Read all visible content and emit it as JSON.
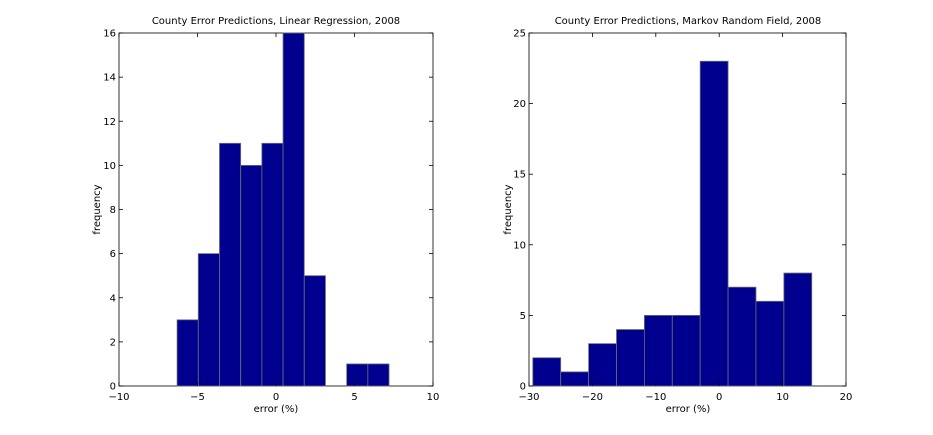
{
  "chart_data": [
    {
      "type": "bar",
      "title": "County Error Predictions, Linear Regression, 2008",
      "xlabel": "error (%)",
      "ylabel": "frequency",
      "xlim": [
        -10,
        10
      ],
      "ylim": [
        0,
        16
      ],
      "xticks": [
        "−10",
        "−5",
        "0",
        "5",
        "10"
      ],
      "yticks": [
        "0",
        "2",
        "4",
        "6",
        "8",
        "10",
        "12",
        "14",
        "16"
      ],
      "bins": [
        {
          "x0": -6.3,
          "x1": -4.95,
          "value": 3
        },
        {
          "x0": -4.95,
          "x1": -3.6,
          "value": 6
        },
        {
          "x0": -3.6,
          "x1": -2.25,
          "value": 11
        },
        {
          "x0": -2.25,
          "x1": -0.9,
          "value": 10
        },
        {
          "x0": -0.9,
          "x1": 0.45,
          "value": 11
        },
        {
          "x0": 0.45,
          "x1": 1.8,
          "value": 16
        },
        {
          "x0": 1.8,
          "x1": 3.15,
          "value": 5
        },
        {
          "x0": 3.15,
          "x1": 4.5,
          "value": 0
        },
        {
          "x0": 4.5,
          "x1": 5.85,
          "value": 1
        },
        {
          "x0": 5.85,
          "x1": 7.2,
          "value": 1
        }
      ],
      "grid": false
    },
    {
      "type": "bar",
      "title": "County Error Predictions, Markov Random Field, 2008",
      "xlabel": "error (%)",
      "ylabel": "frequency",
      "xlim": [
        -30,
        20
      ],
      "ylim": [
        0,
        25
      ],
      "xticks": [
        "−30",
        "−20",
        "−10",
        "0",
        "10",
        "20"
      ],
      "yticks": [
        "0",
        "5",
        "10",
        "15",
        "20",
        "25"
      ],
      "bins": [
        {
          "x0": -29.4,
          "x1": -25.0,
          "value": 2
        },
        {
          "x0": -25.0,
          "x1": -20.6,
          "value": 1
        },
        {
          "x0": -20.6,
          "x1": -16.2,
          "value": 3
        },
        {
          "x0": -16.2,
          "x1": -11.8,
          "value": 4
        },
        {
          "x0": -11.8,
          "x1": -7.4,
          "value": 5
        },
        {
          "x0": -7.4,
          "x1": -3.0,
          "value": 5
        },
        {
          "x0": -3.0,
          "x1": 1.4,
          "value": 23
        },
        {
          "x0": 1.4,
          "x1": 5.8,
          "value": 7
        },
        {
          "x0": 5.8,
          "x1": 10.2,
          "value": 6
        },
        {
          "x0": 10.2,
          "x1": 14.6,
          "value": 8
        }
      ],
      "grid": false
    }
  ]
}
